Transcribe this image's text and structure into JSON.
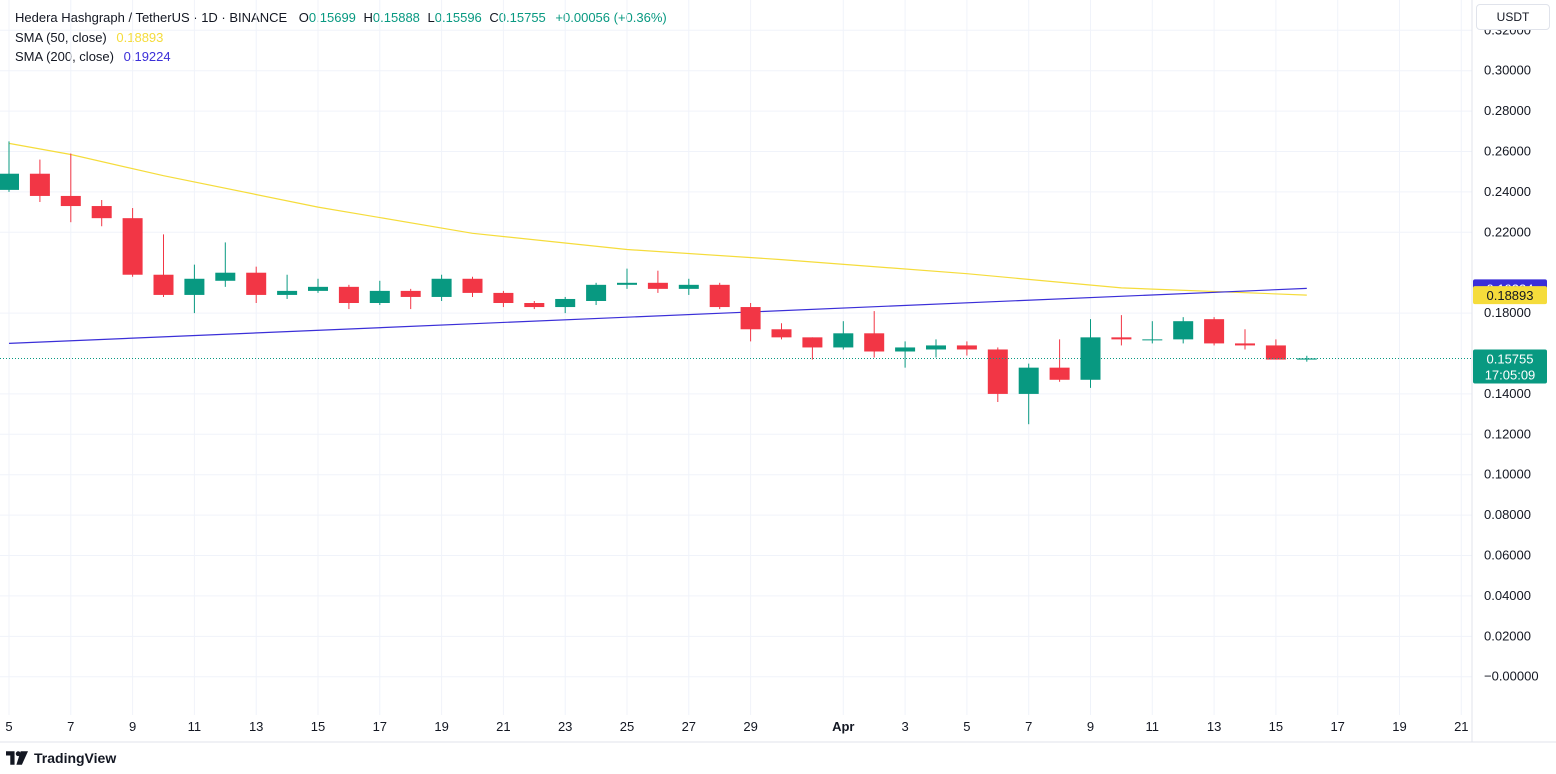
{
  "header": {
    "symbol": "Hedera Hashgraph / TetherUS · 1D · BINANCE",
    "o_label": "O",
    "o": "0.15699",
    "h_label": "H",
    "h": "0.15888",
    "l_label": "L",
    "l": "0.15596",
    "c_label": "C",
    "c": "0.15755",
    "change": "+0.00056 (+0.36%)",
    "sma50_label": "SMA (50, close)",
    "sma50_value": "0.18893",
    "sma200_label": "SMA (200, close)",
    "sma200_value": "0.19224"
  },
  "currency": "USDT",
  "footer": {
    "brand": "TradingView"
  },
  "colors": {
    "up": "#089981",
    "down": "#f23645",
    "sma50": "#f5dc3b",
    "sma200": "#3b2fd8",
    "grid": "#f0f3fa",
    "axis_text": "#131722"
  },
  "chart_data": {
    "type": "candlestick",
    "x_tick_labels": [
      "5",
      "7",
      "9",
      "11",
      "13",
      "15",
      "17",
      "19",
      "21",
      "23",
      "25",
      "27",
      "29",
      "Apr",
      "3",
      "5",
      "7",
      "9",
      "11",
      "13",
      "15",
      "17",
      "19",
      "21"
    ],
    "y_tick_labels": [
      "0.32000",
      "0.30000",
      "0.28000",
      "0.26000",
      "0.24000",
      "0.22000",
      "0.18000",
      "0.14000",
      "0.12000",
      "0.10000",
      "0.08000",
      "0.06000",
      "0.04000",
      "0.02000",
      "−0.00000"
    ],
    "ylim": [
      -0.014,
      0.335
    ],
    "grid": true,
    "candles": [
      {
        "date": "Mar 5",
        "o": 0.241,
        "h": 0.265,
        "l": 0.24,
        "c": 0.249
      },
      {
        "date": "Mar 6",
        "o": 0.249,
        "h": 0.256,
        "l": 0.235,
        "c": 0.238
      },
      {
        "date": "Mar 7",
        "o": 0.238,
        "h": 0.259,
        "l": 0.225,
        "c": 0.233
      },
      {
        "date": "Mar 8",
        "o": 0.233,
        "h": 0.236,
        "l": 0.223,
        "c": 0.227
      },
      {
        "date": "Mar 9",
        "o": 0.227,
        "h": 0.232,
        "l": 0.198,
        "c": 0.199
      },
      {
        "date": "Mar 10",
        "o": 0.199,
        "h": 0.219,
        "l": 0.188,
        "c": 0.189
      },
      {
        "date": "Mar 11",
        "o": 0.189,
        "h": 0.204,
        "l": 0.18,
        "c": 0.197
      },
      {
        "date": "Mar 12",
        "o": 0.196,
        "h": 0.215,
        "l": 0.193,
        "c": 0.2
      },
      {
        "date": "Mar 13",
        "o": 0.2,
        "h": 0.203,
        "l": 0.185,
        "c": 0.189
      },
      {
        "date": "Mar 14",
        "o": 0.189,
        "h": 0.199,
        "l": 0.187,
        "c": 0.191
      },
      {
        "date": "Mar 15",
        "o": 0.191,
        "h": 0.197,
        "l": 0.19,
        "c": 0.193
      },
      {
        "date": "Mar 16",
        "o": 0.193,
        "h": 0.194,
        "l": 0.182,
        "c": 0.185
      },
      {
        "date": "Mar 17",
        "o": 0.185,
        "h": 0.196,
        "l": 0.184,
        "c": 0.191
      },
      {
        "date": "Mar 18",
        "o": 0.191,
        "h": 0.192,
        "l": 0.182,
        "c": 0.188
      },
      {
        "date": "Mar 19",
        "o": 0.188,
        "h": 0.199,
        "l": 0.186,
        "c": 0.197
      },
      {
        "date": "Mar 20",
        "o": 0.197,
        "h": 0.198,
        "l": 0.188,
        "c": 0.19
      },
      {
        "date": "Mar 21",
        "o": 0.19,
        "h": 0.191,
        "l": 0.183,
        "c": 0.185
      },
      {
        "date": "Mar 22",
        "o": 0.185,
        "h": 0.186,
        "l": 0.182,
        "c": 0.183
      },
      {
        "date": "Mar 23",
        "o": 0.183,
        "h": 0.188,
        "l": 0.18,
        "c": 0.187
      },
      {
        "date": "Mar 24",
        "o": 0.186,
        "h": 0.195,
        "l": 0.184,
        "c": 0.194
      },
      {
        "date": "Mar 25",
        "o": 0.194,
        "h": 0.202,
        "l": 0.192,
        "c": 0.195
      },
      {
        "date": "Mar 26",
        "o": 0.195,
        "h": 0.201,
        "l": 0.19,
        "c": 0.192
      },
      {
        "date": "Mar 27",
        "o": 0.192,
        "h": 0.197,
        "l": 0.189,
        "c": 0.194
      },
      {
        "date": "Mar 28",
        "o": 0.194,
        "h": 0.195,
        "l": 0.182,
        "c": 0.183
      },
      {
        "date": "Mar 29",
        "o": 0.183,
        "h": 0.185,
        "l": 0.166,
        "c": 0.172
      },
      {
        "date": "Mar 30",
        "o": 0.172,
        "h": 0.175,
        "l": 0.167,
        "c": 0.168
      },
      {
        "date": "Mar 31",
        "o": 0.168,
        "h": 0.168,
        "l": 0.157,
        "c": 0.163
      },
      {
        "date": "Apr 1",
        "o": 0.163,
        "h": 0.176,
        "l": 0.162,
        "c": 0.17
      },
      {
        "date": "Apr 2",
        "o": 0.17,
        "h": 0.181,
        "l": 0.158,
        "c": 0.161
      },
      {
        "date": "Apr 3",
        "o": 0.161,
        "h": 0.166,
        "l": 0.153,
        "c": 0.163
      },
      {
        "date": "Apr 4",
        "o": 0.162,
        "h": 0.167,
        "l": 0.158,
        "c": 0.164
      },
      {
        "date": "Apr 5",
        "o": 0.164,
        "h": 0.166,
        "l": 0.159,
        "c": 0.162
      },
      {
        "date": "Apr 6",
        "o": 0.162,
        "h": 0.163,
        "l": 0.136,
        "c": 0.14
      },
      {
        "date": "Apr 7",
        "o": 0.14,
        "h": 0.155,
        "l": 0.125,
        "c": 0.153
      },
      {
        "date": "Apr 8",
        "o": 0.153,
        "h": 0.167,
        "l": 0.146,
        "c": 0.147
      },
      {
        "date": "Apr 9",
        "o": 0.147,
        "h": 0.177,
        "l": 0.143,
        "c": 0.168
      },
      {
        "date": "Apr 10",
        "o": 0.168,
        "h": 0.179,
        "l": 0.164,
        "c": 0.167
      },
      {
        "date": "Apr 11",
        "o": 0.167,
        "h": 0.176,
        "l": 0.165,
        "c": 0.167
      },
      {
        "date": "Apr 12",
        "o": 0.167,
        "h": 0.178,
        "l": 0.165,
        "c": 0.176
      },
      {
        "date": "Apr 13",
        "o": 0.177,
        "h": 0.178,
        "l": 0.164,
        "c": 0.165
      },
      {
        "date": "Apr 14",
        "o": 0.165,
        "h": 0.172,
        "l": 0.162,
        "c": 0.164
      },
      {
        "date": "Apr 15",
        "o": 0.164,
        "h": 0.167,
        "l": 0.157,
        "c": 0.157
      },
      {
        "date": "Apr 16",
        "o": 0.15699,
        "h": 0.15888,
        "l": 0.15596,
        "c": 0.15755
      }
    ],
    "series": [
      {
        "name": "SMA (50, close)",
        "x": [
          "Mar 5",
          "Mar 7",
          "Mar 10",
          "Mar 15",
          "Mar 20",
          "Mar 25",
          "Mar 30",
          "Apr 5",
          "Apr 10",
          "Apr 16"
        ],
        "values": [
          0.264,
          0.2585,
          0.248,
          0.2325,
          0.2195,
          0.2115,
          0.2065,
          0.1995,
          0.1925,
          0.18893
        ]
      },
      {
        "name": "SMA (200, close)",
        "x": [
          "Mar 5",
          "Apr 16"
        ],
        "values": [
          0.165,
          0.19224
        ]
      }
    ],
    "last_price_label": "0.15755",
    "countdown": "17:05:09"
  }
}
